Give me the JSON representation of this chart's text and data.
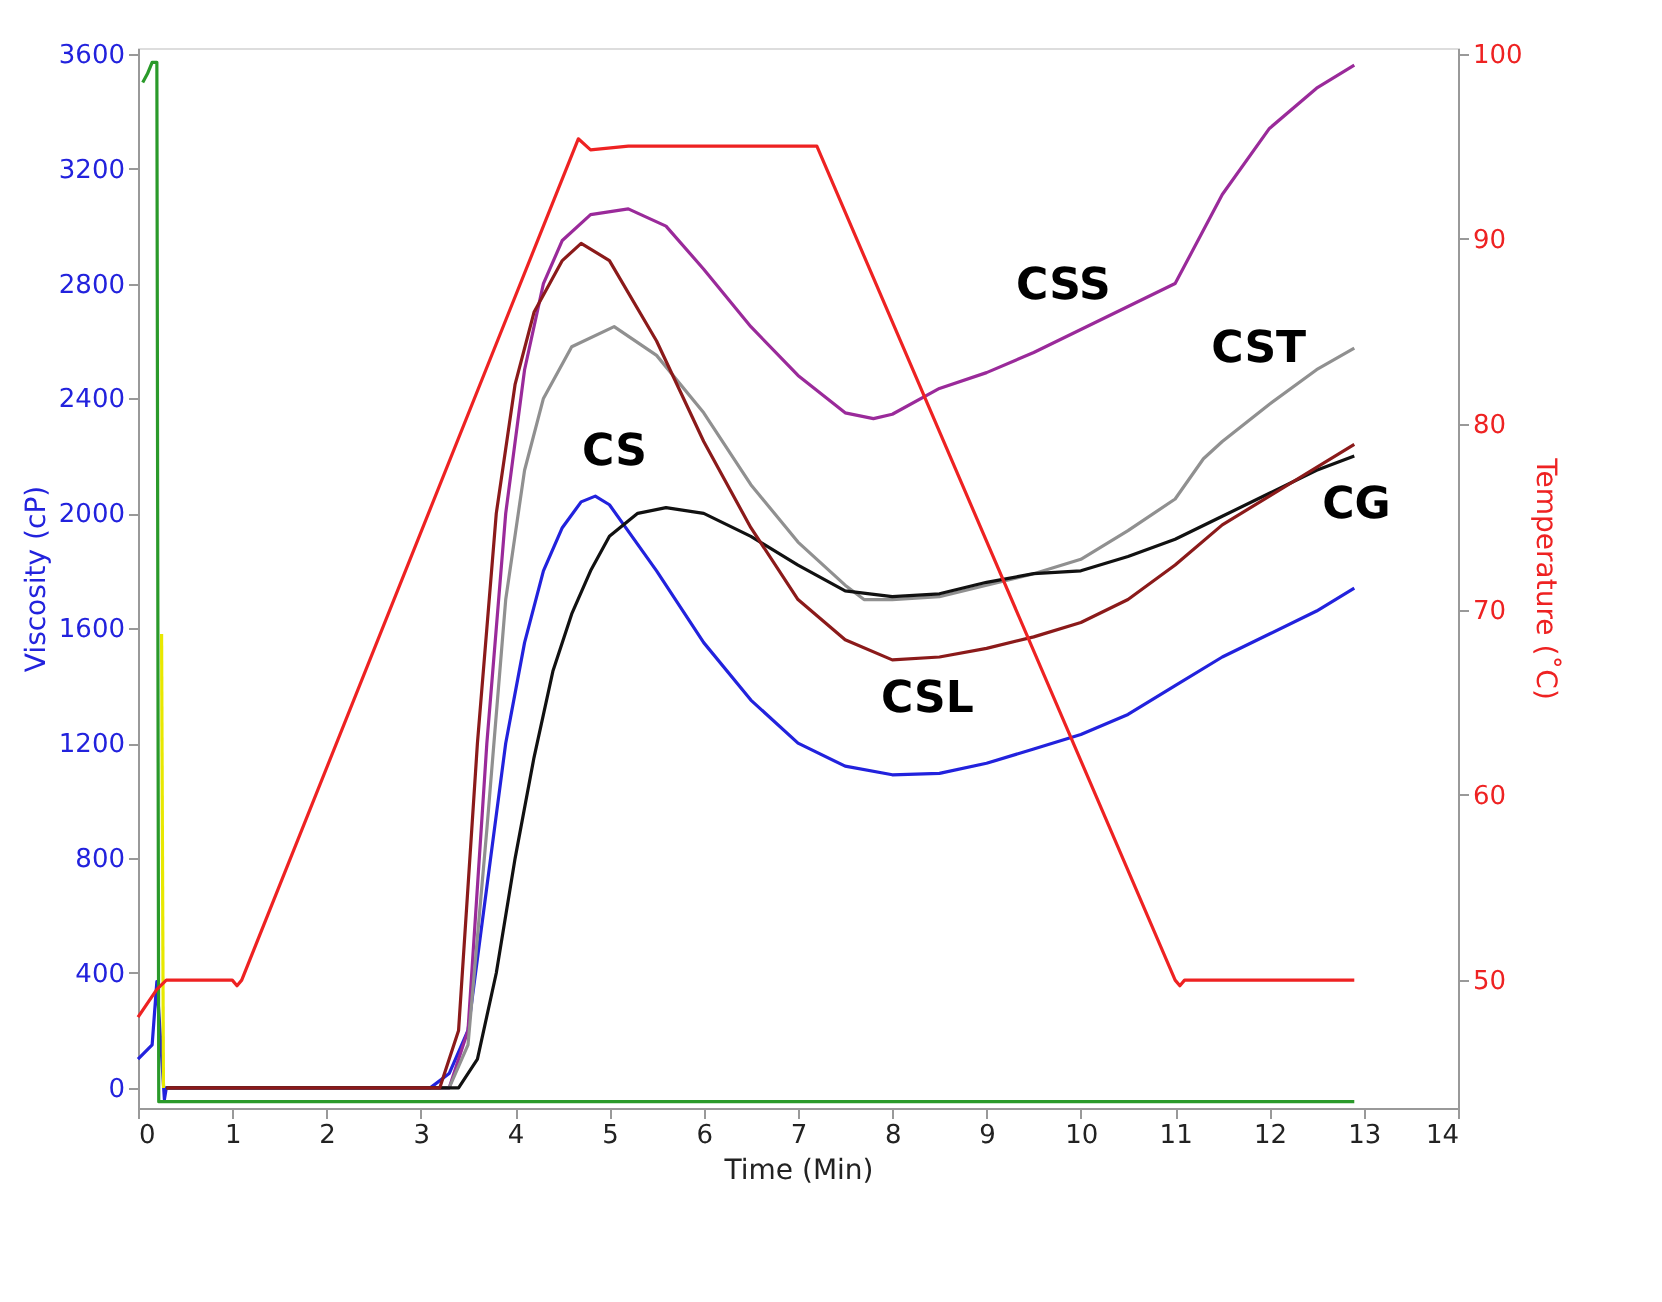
{
  "chart_data": {
    "type": "line",
    "xlabel": "Time (Min)",
    "ylabel": "Viscosity (cP)",
    "y2label": "Temperature (˚C)",
    "xlim": [
      0,
      14
    ],
    "xticks": [
      0,
      1,
      2,
      3,
      4,
      5,
      6,
      7,
      8,
      9,
      10,
      11,
      12,
      13,
      14
    ],
    "ylim": [
      -70,
      3620
    ],
    "yticks": [
      0,
      400,
      800,
      1200,
      1600,
      2000,
      2400,
      2800,
      3200,
      3600
    ],
    "y2lim": [
      43.1,
      100.3
    ],
    "y2ticks": [
      50,
      60,
      70,
      80,
      90,
      100
    ],
    "grid": false,
    "marker": "none",
    "line_style": "solid",
    "legend": false,
    "series": [
      {
        "color": "#2222dd",
        "x": [
          0,
          0.15,
          0.2,
          0.28,
          0.3,
          3.1,
          3.3,
          3.5,
          3.7,
          3.9,
          4.1,
          4.3,
          4.5,
          4.7,
          4.85,
          5.0,
          5.5,
          6.0,
          6.5,
          7.0,
          7.5,
          8.0,
          8.5,
          9.0,
          9.5,
          10.0,
          10.5,
          11.0,
          11.5,
          12.0,
          12.5,
          12.9
        ],
        "values": [
          100,
          150,
          370,
          -40,
          0,
          0,
          50,
          200,
          700,
          1200,
          1550,
          1800,
          1950,
          2040,
          2060,
          2030,
          1800,
          1550,
          1350,
          1200,
          1120,
          1090,
          1095,
          1130,
          1180,
          1230,
          1300,
          1400,
          1500,
          1580,
          1660,
          1740
        ]
      },
      {
        "color": "#9a2a9a",
        "x": [
          0.3,
          3.3,
          3.5,
          3.7,
          3.9,
          4.1,
          4.3,
          4.5,
          4.8,
          5.2,
          5.6,
          6.0,
          6.5,
          7.0,
          7.5,
          7.8,
          8.0,
          8.5,
          9.0,
          9.5,
          10.0,
          10.5,
          11.0,
          11.5,
          12.0,
          12.5,
          12.9
        ],
        "values": [
          0,
          0,
          200,
          1200,
          2000,
          2500,
          2800,
          2950,
          3040,
          3060,
          3000,
          2850,
          2650,
          2480,
          2350,
          2330,
          2345,
          2435,
          2490,
          2560,
          2640,
          2720,
          2800,
          3110,
          3340,
          3480,
          3560
        ]
      },
      {
        "color": "#909090",
        "x": [
          0.3,
          3.3,
          3.5,
          3.7,
          3.9,
          4.1,
          4.3,
          4.6,
          5.05,
          5.5,
          6.0,
          6.5,
          7.0,
          7.5,
          7.7,
          8.0,
          8.5,
          9.0,
          9.5,
          10.0,
          10.5,
          11.0,
          11.3,
          11.5,
          12.0,
          12.5,
          12.9
        ],
        "values": [
          0,
          0,
          150,
          900,
          1700,
          2150,
          2400,
          2580,
          2650,
          2550,
          2350,
          2100,
          1900,
          1750,
          1700,
          1700,
          1710,
          1750,
          1790,
          1840,
          1940,
          2050,
          2190,
          2250,
          2380,
          2500,
          2575
        ]
      },
      {
        "color": "#111111",
        "x": [
          0.3,
          3.4,
          3.6,
          3.8,
          4.0,
          4.2,
          4.4,
          4.6,
          4.8,
          5.0,
          5.3,
          5.6,
          6.0,
          6.5,
          7.0,
          7.5,
          8.0,
          8.5,
          9.0,
          9.5,
          10.0,
          10.5,
          11.0,
          11.5,
          12.0,
          12.5,
          12.9
        ],
        "values": [
          0,
          0,
          100,
          400,
          800,
          1150,
          1450,
          1650,
          1800,
          1920,
          2000,
          2020,
          2000,
          1920,
          1820,
          1730,
          1710,
          1720,
          1760,
          1790,
          1800,
          1850,
          1910,
          1990,
          2070,
          2150,
          2200
        ]
      },
      {
        "color": "#8b1a1a",
        "x": [
          0.3,
          3.2,
          3.4,
          3.6,
          3.8,
          4.0,
          4.2,
          4.5,
          4.7,
          5.0,
          5.5,
          6.0,
          6.5,
          7.0,
          7.5,
          8.0,
          8.5,
          9.0,
          9.5,
          10.0,
          10.5,
          11.0,
          11.5,
          12.0,
          12.5,
          12.9
        ],
        "values": [
          0,
          0,
          200,
          1200,
          2000,
          2450,
          2700,
          2880,
          2940,
          2880,
          2600,
          2250,
          1950,
          1700,
          1560,
          1490,
          1500,
          1530,
          1570,
          1620,
          1700,
          1820,
          1960,
          2060,
          2160,
          2240
        ]
      },
      {
        "color": "#2a9a2a",
        "x": [
          0.05,
          0.1,
          0.15,
          0.2,
          0.22,
          12.9
        ],
        "values": [
          3500,
          3530,
          3570,
          3570,
          -48,
          -48
        ]
      },
      {
        "color": "#e8e800",
        "x": [
          0.25,
          0.27
        ],
        "values": [
          1580,
          0
        ]
      },
      {
        "color": "#ee2222",
        "axis": "y2",
        "x": [
          0,
          0.2,
          0.3,
          1.0,
          1.05,
          1.1,
          4.67,
          4.8,
          5.2,
          7.2,
          11.0,
          11.05,
          11.1,
          12.9
        ],
        "values": [
          48,
          49.5,
          50,
          50,
          49.7,
          50,
          95.4,
          94.8,
          95,
          95,
          50,
          49.7,
          50,
          50
        ]
      }
    ],
    "annotations": [
      "CS",
      "CSS",
      "CST",
      "CG",
      "CSL"
    ]
  }
}
